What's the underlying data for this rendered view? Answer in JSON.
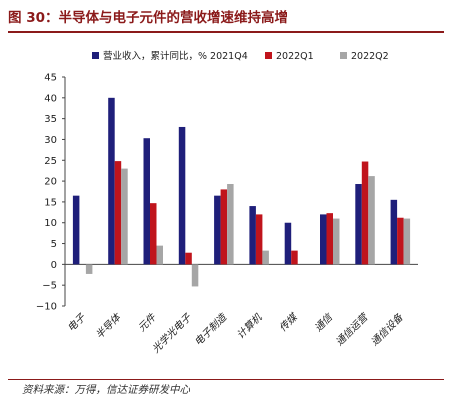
{
  "figure": {
    "title": "图 30：半导体与电子元件的营收增速维持高增",
    "source": "资料来源：万得，信达证券研发中心"
  },
  "colors": {
    "title": "#8B1A1A",
    "series": [
      "#1F1F7A",
      "#C0141C",
      "#A6A6A6"
    ]
  },
  "chart_data": {
    "type": "bar",
    "categories": [
      "电子",
      "半导体",
      "元件",
      "光学光电子",
      "电子制造",
      "计算机",
      "传媒",
      "通信",
      "通信运营",
      "通信设备"
    ],
    "series": [
      {
        "name": "营业收入，累计同比，% 2021Q4",
        "values": [
          16.5,
          40.0,
          30.3,
          33.0,
          16.5,
          14.0,
          10.0,
          12.0,
          19.3,
          15.5
        ]
      },
      {
        "name": "2022Q1",
        "values": [
          null,
          24.8,
          14.7,
          2.8,
          18.0,
          12.0,
          3.3,
          12.3,
          24.7,
          11.2
        ]
      },
      {
        "name": "2022Q2",
        "values": [
          -2.3,
          23.0,
          4.5,
          -5.3,
          19.3,
          3.3,
          null,
          11.0,
          21.2,
          11.0
        ]
      }
    ],
    "ylim": [
      -10,
      45
    ],
    "yticks": [
      -10,
      -5,
      0,
      5,
      10,
      15,
      20,
      25,
      30,
      35,
      40,
      45
    ],
    "legend_position": "top",
    "grid": false
  }
}
